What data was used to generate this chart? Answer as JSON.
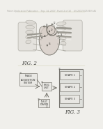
{
  "bg_color": "#f0efeb",
  "header_color": "#b0aea8",
  "header_text": "Patent Application Publication    Sep. 14, 2017  Sheet 2 of 10    US 2017/0258436 A1",
  "fig2_label": "FIG. 2",
  "fig3_label": "FIG. 3",
  "line_color": "#9a9890",
  "dark_line": "#6a6860",
  "box_fill": "#e8e7e3",
  "box_edge": "#888680",
  "outer_box_fill": "#dfe0dc",
  "outer_box_edge": "#777570"
}
